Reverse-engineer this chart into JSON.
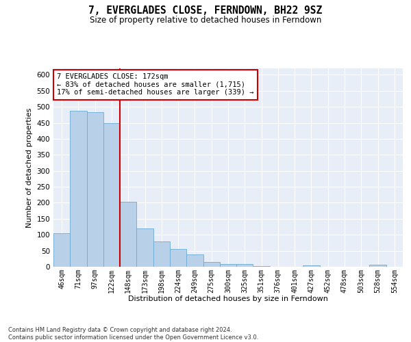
{
  "title": "7, EVERGLADES CLOSE, FERNDOWN, BH22 9SZ",
  "subtitle": "Size of property relative to detached houses in Ferndown",
  "xlabel": "Distribution of detached houses by size in Ferndown",
  "ylabel": "Number of detached properties",
  "categories": [
    "46sqm",
    "71sqm",
    "97sqm",
    "122sqm",
    "148sqm",
    "173sqm",
    "198sqm",
    "224sqm",
    "249sqm",
    "275sqm",
    "300sqm",
    "325sqm",
    "351sqm",
    "376sqm",
    "401sqm",
    "427sqm",
    "452sqm",
    "478sqm",
    "503sqm",
    "528sqm",
    "554sqm"
  ],
  "values": [
    105,
    487,
    484,
    450,
    203,
    120,
    80,
    55,
    38,
    14,
    8,
    8,
    2,
    1,
    1,
    5,
    1,
    0,
    0,
    6,
    0
  ],
  "bar_color": "#b8d0e8",
  "bar_edge_color": "#6aaad4",
  "annotation_text": "7 EVERGLADES CLOSE: 172sqm\n← 83% of detached houses are smaller (1,715)\n17% of semi-detached houses are larger (339) →",
  "annotation_box_color": "#ffffff",
  "annotation_box_edge": "#cc0000",
  "marker_line_color": "#cc0000",
  "background_color": "#e8eef8",
  "grid_color": "#ffffff",
  "footer": "Contains HM Land Registry data © Crown copyright and database right 2024.\nContains public sector information licensed under the Open Government Licence v3.0.",
  "ylim": [
    0,
    620
  ],
  "yticks": [
    0,
    50,
    100,
    150,
    200,
    250,
    300,
    350,
    400,
    450,
    500,
    550,
    600
  ]
}
